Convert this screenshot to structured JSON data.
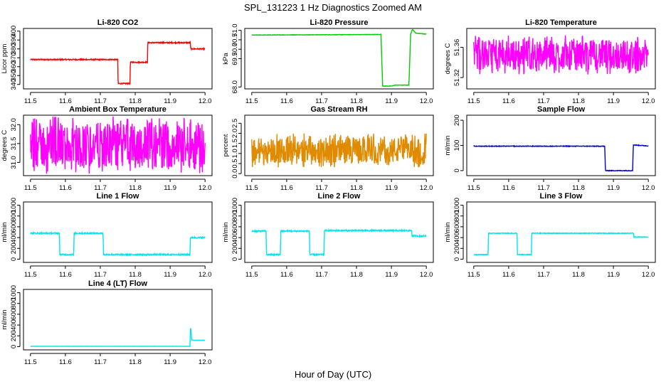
{
  "figure": {
    "title": "SPL_131223  1 Hz Diagnostics Zoomed AM",
    "xlabel": "Hour of Day (UTC)"
  },
  "chart_data": [
    {
      "type": "line",
      "title": "Li-820 CO2",
      "xlabel": "",
      "ylabel": "Licor ppm",
      "xlim": [
        11.5,
        12.0
      ],
      "xticks": [
        "11.5",
        "11.6",
        "11.7",
        "11.8",
        "11.9",
        "12.0"
      ],
      "ylim": [
        335,
        403
      ],
      "yticks": [
        340,
        350,
        360,
        370,
        380,
        390,
        400
      ],
      "color": "#ff0000",
      "noise": 0.6,
      "series": [
        {
          "x": [
            11.5,
            11.75,
            11.751,
            11.785,
            11.786,
            11.835,
            11.836,
            11.958,
            11.959,
            12.0
          ],
          "y": [
            368,
            368,
            341,
            341,
            365,
            365,
            387,
            387,
            380,
            380
          ]
        }
      ]
    },
    {
      "type": "line",
      "title": "Li-820 Pressure",
      "xlabel": "",
      "ylabel": "kPa",
      "xlim": [
        11.5,
        12.0
      ],
      "xticks": [
        "11.5",
        "11.6",
        "11.7",
        "11.8",
        "11.9",
        "12.0"
      ],
      "ylim": [
        67.9,
        71.1
      ],
      "yticks": [
        "68.0",
        "69.5",
        "70.0",
        "70.5",
        "71.0"
      ],
      "ytickvals": [
        68.0,
        69.5,
        70.0,
        70.5,
        71.0
      ],
      "color": "#00cc00",
      "noise": 0.01,
      "series": [
        {
          "x": [
            11.5,
            11.87,
            11.875,
            11.9,
            11.91,
            11.95,
            11.955,
            11.96,
            11.97,
            12.0
          ],
          "y": [
            70.75,
            70.78,
            68.05,
            68.05,
            68.1,
            68.1,
            70.8,
            71.05,
            70.85,
            70.8
          ]
        }
      ]
    },
    {
      "type": "line",
      "title": "Li-820 Temperature",
      "xlabel": "",
      "ylabel": "degrees C",
      "xlim": [
        11.5,
        12.0
      ],
      "xticks": [
        "11.5",
        "11.6",
        "11.7",
        "11.8",
        "11.9",
        "12.0"
      ],
      "ylim": [
        51.305,
        51.385
      ],
      "yticks": [
        "51.32",
        "51.36"
      ],
      "ytickvals": [
        51.32,
        51.36
      ],
      "color": "#ff00ff",
      "noise": 0,
      "band": [
        51.33,
        51.37
      ],
      "series": [
        {
          "x": [
            11.5,
            12.0
          ],
          "y": [
            51.35,
            51.35
          ]
        }
      ]
    },
    {
      "type": "line",
      "title": "Ambient Box Temperature",
      "xlabel": "",
      "ylabel": "degrees C",
      "xlim": [
        11.5,
        12.0
      ],
      "xticks": [
        "11.5",
        "11.6",
        "11.7",
        "11.8",
        "11.9",
        "12.0"
      ],
      "ylim": [
        30.65,
        32.25
      ],
      "yticks": [
        "31.0",
        "31.5",
        "32.0"
      ],
      "ytickvals": [
        31.0,
        31.5,
        32.0
      ],
      "color": "#ff00ff",
      "noise": 0,
      "band": [
        30.85,
        32.05
      ],
      "series": [
        {
          "x": [
            11.5,
            12.0
          ],
          "y": [
            31.4,
            31.4
          ]
        }
      ]
    },
    {
      "type": "line",
      "title": "Gas Stream RH",
      "xlabel": "",
      "ylabel": "percent",
      "xlim": [
        11.5,
        12.0
      ],
      "xticks": [
        "11.5",
        "11.6",
        "11.7",
        "11.8",
        "11.9",
        "12.0"
      ],
      "ylim": [
        -0.1,
        2.9
      ],
      "yticks": [
        "0.0",
        "0.5",
        "1.0",
        "1.5",
        "2.0",
        "2.5"
      ],
      "ytickvals": [
        0.0,
        0.5,
        1.0,
        1.5,
        2.0,
        2.5
      ],
      "color": "#e08a00",
      "noise": 0,
      "band": [
        0.5,
        1.8
      ],
      "series": [
        {
          "x": [
            11.5,
            12.0
          ],
          "y": [
            1.2,
            1.2
          ]
        }
      ]
    },
    {
      "type": "line",
      "title": "Sample Flow",
      "xlabel": "",
      "ylabel": "ml/min",
      "xlim": [
        11.5,
        12.0
      ],
      "xticks": [
        "11.5",
        "11.6",
        "11.7",
        "11.8",
        "11.9",
        "12.0"
      ],
      "ylim": [
        -20,
        220
      ],
      "yticks": [
        0,
        100,
        200
      ],
      "color": "#0000dd",
      "noise": 1.2,
      "series": [
        {
          "x": [
            11.5,
            11.875,
            11.877,
            11.955,
            11.957,
            12.0
          ],
          "y": [
            97,
            97,
            0,
            0,
            102,
            98
          ]
        }
      ]
    },
    {
      "type": "line",
      "title": "Line 1 Flow",
      "xlabel": "",
      "ylabel": "ml/min",
      "xlim": [
        11.5,
        12.0
      ],
      "xticks": [
        "11.5",
        "11.6",
        "11.7",
        "11.8",
        "11.9",
        "12.0"
      ],
      "ylim": [
        -60,
        1060
      ],
      "yticks": [
        0,
        200,
        400,
        600,
        800,
        1000
      ],
      "color": "#00e5ee",
      "noise": 12,
      "series": [
        {
          "x": [
            11.5,
            11.583,
            11.584,
            11.624,
            11.625,
            11.708,
            11.709,
            11.957,
            11.958,
            12.0
          ],
          "y": [
            480,
            480,
            85,
            85,
            480,
            480,
            85,
            85,
            400,
            400
          ]
        }
      ]
    },
    {
      "type": "line",
      "title": "Line 2 Flow",
      "xlabel": "",
      "ylabel": "ml/min",
      "xlim": [
        11.5,
        12.0
      ],
      "xticks": [
        "11.5",
        "11.6",
        "11.7",
        "11.8",
        "11.9",
        "12.0"
      ],
      "ylim": [
        -60,
        1060
      ],
      "yticks": [
        0,
        200,
        400,
        600,
        800,
        1000
      ],
      "color": "#00e5ee",
      "noise": 12,
      "series": [
        {
          "x": [
            11.5,
            11.541,
            11.542,
            11.582,
            11.583,
            11.665,
            11.666,
            11.707,
            11.708,
            11.958,
            11.959,
            12.0
          ],
          "y": [
            520,
            520,
            85,
            85,
            520,
            520,
            85,
            85,
            530,
            530,
            430,
            430
          ]
        }
      ]
    },
    {
      "type": "line",
      "title": "Line 3 Flow",
      "xlabel": "",
      "ylabel": "ml/min",
      "xlim": [
        11.5,
        12.0
      ],
      "xticks": [
        "11.5",
        "11.6",
        "11.7",
        "11.8",
        "11.9",
        "12.0"
      ],
      "ylim": [
        -60,
        1060
      ],
      "yticks": [
        0,
        200,
        400,
        600,
        800,
        1000
      ],
      "color": "#00e5ee",
      "noise": 6,
      "series": [
        {
          "x": [
            11.5,
            11.541,
            11.542,
            11.624,
            11.625,
            11.665,
            11.666,
            11.958,
            11.959,
            12.0
          ],
          "y": [
            85,
            85,
            480,
            480,
            85,
            85,
            480,
            480,
            410,
            410
          ]
        }
      ]
    },
    {
      "type": "line",
      "title": "Line 4 (LT) Flow",
      "xlabel": "",
      "ylabel": "ml/min",
      "xlim": [
        11.5,
        12.0
      ],
      "xticks": [
        "11.5",
        "11.6",
        "11.7",
        "11.8",
        "11.9",
        "12.0"
      ],
      "ylim": [
        -60,
        1060
      ],
      "yticks": [
        0,
        200,
        400,
        600,
        800,
        1000
      ],
      "color": "#00e5ee",
      "noise": 1,
      "series": [
        {
          "x": [
            11.5,
            11.957,
            11.958,
            11.959,
            11.962,
            11.963,
            12.0
          ],
          "y": [
            5,
            5,
            340,
            340,
            120,
            120,
            120
          ]
        }
      ]
    }
  ]
}
